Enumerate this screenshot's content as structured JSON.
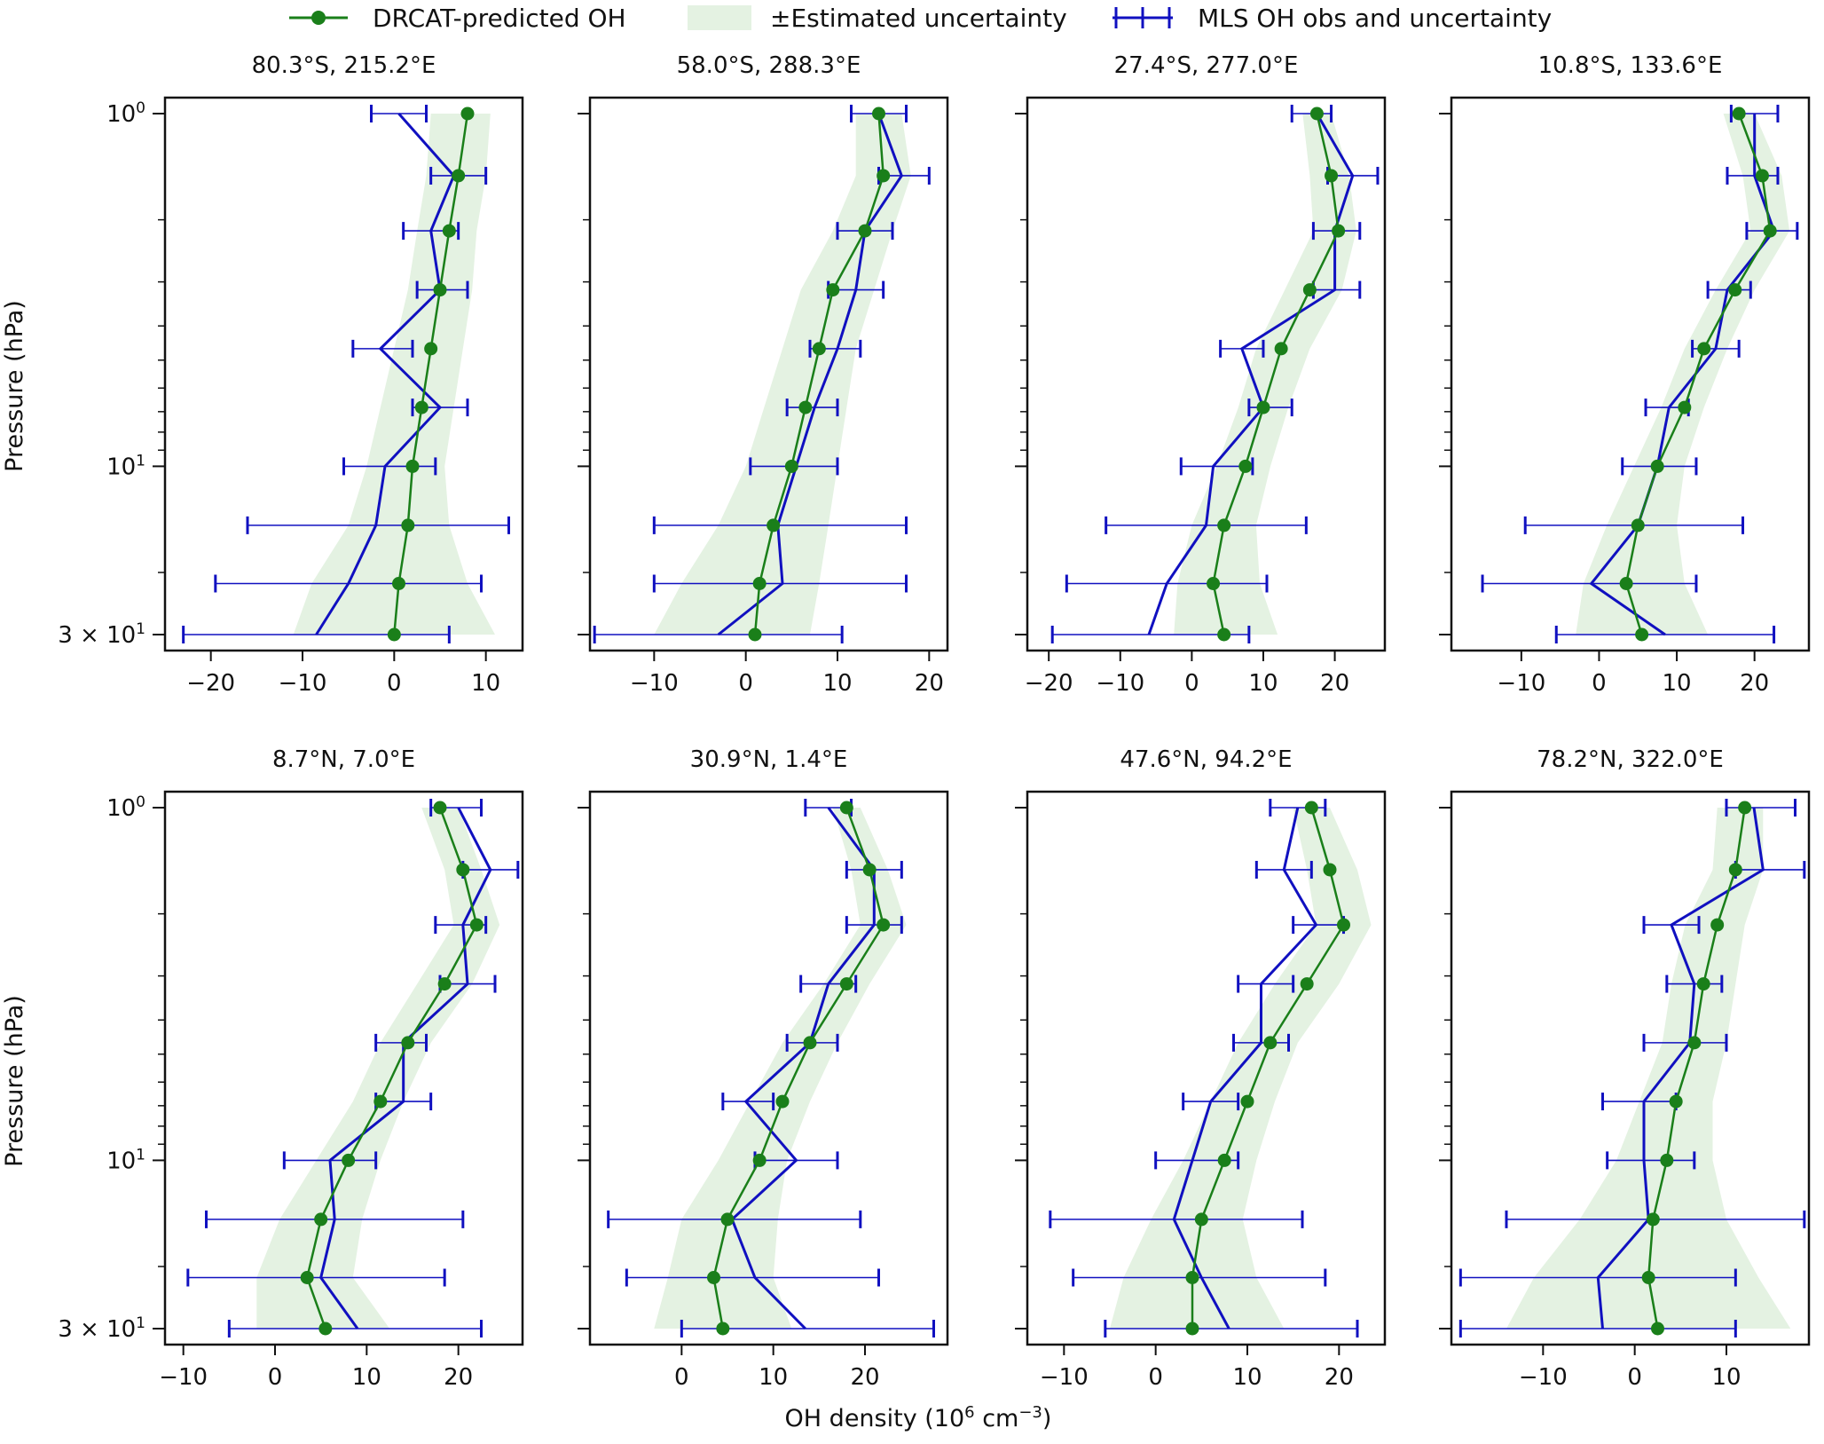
{
  "legend": {
    "model_label": "DRCAT-predicted OH",
    "band_label": "±Estimated uncertainty",
    "obs_label": "MLS OH obs and uncertainty"
  },
  "colors": {
    "model": "#1a7f1a",
    "band": "#e4f2e2",
    "obs": "#1010c0",
    "axes": "#111111"
  },
  "axis_labels": {
    "ylabel": "Pressure (hPa)",
    "xlabel_main": "OH density (10",
    "xlabel_exp": "6",
    "xlabel_tail": " cm",
    "xlabel_exp2": "−3",
    "xlabel_close": ")"
  },
  "chart_data": [
    {
      "type": "line",
      "title": "80.3°S, 215.2°E",
      "xlim": [
        -25,
        14
      ],
      "xticks": [
        -20,
        -10,
        0,
        10
      ],
      "ylim": [
        1,
        30
      ],
      "yscale": "log",
      "pressure": [
        1.0,
        1.5,
        2.15,
        3.16,
        4.64,
        6.81,
        10.0,
        14.7,
        21.5,
        30.0
      ],
      "model": [
        8,
        7,
        6,
        5,
        4,
        3,
        2,
        1.5,
        0.5,
        0
      ],
      "band_low": [
        4,
        3.5,
        2.5,
        1.5,
        0,
        -1.5,
        -3,
        -5,
        -9,
        -11
      ],
      "band_high": [
        10.5,
        10,
        9,
        8.5,
        7.5,
        6.5,
        5.5,
        6,
        8,
        11
      ],
      "obs": [
        0.5,
        6.5,
        4,
        5,
        -1.5,
        5,
        -1,
        -2,
        -5,
        -8.5
      ],
      "obs_err_low": [
        -2.5,
        4,
        1,
        2.5,
        -4.5,
        2,
        -5.5,
        -16,
        -19.5,
        -23
      ],
      "obs_err_high": [
        3.5,
        10,
        7,
        8,
        2,
        8,
        4.5,
        12.5,
        9.5,
        6
      ]
    },
    {
      "type": "line",
      "title": "58.0°S, 288.3°E",
      "xlim": [
        -17,
        22
      ],
      "xticks": [
        -10,
        0,
        10,
        20
      ],
      "ylim": [
        1,
        30
      ],
      "yscale": "log",
      "pressure": [
        1.0,
        1.5,
        2.15,
        3.16,
        4.64,
        6.81,
        10.0,
        14.7,
        21.5,
        30.0
      ],
      "model": [
        14.5,
        15,
        13,
        9.5,
        8,
        6.5,
        5,
        3,
        1.5,
        1
      ],
      "band_low": [
        12,
        12,
        9.5,
        6,
        4,
        2,
        0,
        -3,
        -7,
        -10
      ],
      "band_high": [
        17,
        18,
        16,
        14,
        12,
        11,
        10,
        9,
        8,
        7
      ],
      "obs": [
        14.5,
        17,
        13,
        12,
        10,
        7.5,
        5.5,
        3.5,
        4,
        -3
      ],
      "obs_err_low": [
        11.5,
        14.5,
        10,
        9,
        7,
        4.5,
        0.5,
        -10,
        -10,
        -16.5
      ],
      "obs_err_high": [
        17.5,
        20,
        16,
        15,
        12.5,
        10,
        10,
        17.5,
        17.5,
        10.5
      ]
    },
    {
      "type": "line",
      "title": "27.4°S, 277.0°E",
      "xlim": [
        -23,
        27
      ],
      "xticks": [
        -20,
        -10,
        0,
        10,
        20
      ],
      "ylim": [
        1,
        30
      ],
      "yscale": "log",
      "pressure": [
        1.0,
        1.5,
        2.15,
        3.16,
        4.64,
        6.81,
        10.0,
        14.7,
        21.5,
        30.0
      ],
      "model": [
        17.5,
        19.5,
        20.5,
        16.5,
        12.5,
        10,
        7.5,
        4.5,
        3,
        4.5
      ],
      "band_low": [
        15.5,
        16.5,
        17,
        13,
        9,
        6.5,
        3.5,
        0,
        -2,
        -2.5
      ],
      "band_high": [
        19.5,
        22,
        23,
        21,
        16.5,
        13.5,
        11,
        9,
        9.5,
        12
      ],
      "obs": [
        17.5,
        22.5,
        20,
        20,
        7,
        10,
        3,
        2,
        -3.5,
        -6
      ],
      "obs_err_low": [
        14,
        19,
        17,
        17,
        4,
        8,
        -1.5,
        -12,
        -17.5,
        -19.5
      ],
      "obs_err_high": [
        19.5,
        26,
        23.5,
        23.5,
        10,
        14,
        8.5,
        16,
        10.5,
        8
      ]
    },
    {
      "type": "line",
      "title": "10.8°S, 133.6°E",
      "xlim": [
        -19,
        27
      ],
      "xticks": [
        -10,
        0,
        10,
        20
      ],
      "ylim": [
        1,
        30
      ],
      "yscale": "log",
      "pressure": [
        1.0,
        1.5,
        2.15,
        3.16,
        4.64,
        6.81,
        10.0,
        14.7,
        21.5,
        30.0
      ],
      "model": [
        18,
        21,
        22,
        17.5,
        13.5,
        11,
        7.5,
        5,
        3.5,
        5.5
      ],
      "band_low": [
        16,
        18.5,
        19.5,
        15,
        11,
        8,
        4.5,
        1,
        -2,
        -3
      ],
      "band_high": [
        20,
        23.5,
        24.5,
        20,
        16.5,
        13.5,
        11,
        10,
        11,
        14
      ],
      "obs": [
        20,
        20,
        22.5,
        16.5,
        15,
        9,
        7.5,
        5,
        -1,
        8.5
      ],
      "obs_err_low": [
        17,
        16.5,
        19,
        14,
        12,
        6,
        3,
        -9.5,
        -15,
        -5.5
      ],
      "obs_err_high": [
        23,
        23,
        25.5,
        19.5,
        18,
        11.5,
        12.5,
        18.5,
        12.5,
        22.5
      ]
    },
    {
      "type": "line",
      "title": "8.7°N, 7.0°E",
      "xlim": [
        -12,
        27
      ],
      "xticks": [
        -10,
        0,
        10,
        20
      ],
      "ylim": [
        1,
        30
      ],
      "yscale": "log",
      "pressure": [
        1.0,
        1.5,
        2.15,
        3.16,
        4.64,
        6.81,
        10.0,
        14.7,
        21.5,
        30.0
      ],
      "model": [
        18,
        20.5,
        22,
        18.5,
        14.5,
        11.5,
        8,
        5,
        3.5,
        5.5
      ],
      "band_low": [
        16,
        18.5,
        19.5,
        15.5,
        11.5,
        8.5,
        4.5,
        0.5,
        -2,
        -2
      ],
      "band_high": [
        20,
        22.5,
        24.5,
        21.5,
        17,
        14,
        11.5,
        9.5,
        8.5,
        12.5
      ],
      "obs": [
        20,
        23.5,
        20.5,
        21,
        14,
        14,
        6,
        6.5,
        5,
        9
      ],
      "obs_err_low": [
        17,
        20.5,
        17.5,
        18,
        11,
        11,
        1,
        -7.5,
        -9.5,
        -5
      ],
      "obs_err_high": [
        22.5,
        26.5,
        23,
        24,
        16.5,
        17,
        11,
        20.5,
        18.5,
        22.5
      ]
    },
    {
      "type": "line",
      "title": "30.9°N, 1.4°E",
      "xlim": [
        -10,
        29
      ],
      "xticks": [
        0,
        10,
        20
      ],
      "ylim": [
        1,
        30
      ],
      "yscale": "log",
      "pressure": [
        1.0,
        1.5,
        2.15,
        3.16,
        4.64,
        6.81,
        10.0,
        14.7,
        21.5,
        30.0
      ],
      "model": [
        18,
        20.5,
        22,
        18,
        14,
        11,
        8.5,
        5,
        3.5,
        4.5
      ],
      "band_low": [
        16.5,
        18.5,
        19.5,
        15.5,
        11,
        7.5,
        4,
        0,
        -1.5,
        -3
      ],
      "band_high": [
        19.5,
        22.5,
        24.5,
        20.5,
        17,
        14,
        11.5,
        10.5,
        10,
        12
      ],
      "obs": [
        16,
        21,
        21,
        16,
        14,
        7,
        12.5,
        5.5,
        8,
        13.5
      ],
      "obs_err_low": [
        13.5,
        18,
        18,
        13,
        11.5,
        4.5,
        8,
        -8,
        -6,
        0
      ],
      "obs_err_high": [
        18.5,
        24,
        24,
        19,
        17,
        10,
        17,
        19.5,
        21.5,
        27.5
      ]
    },
    {
      "type": "line",
      "title": "47.6°N, 94.2°E",
      "xlim": [
        -14,
        25
      ],
      "xticks": [
        -10,
        0,
        10,
        20
      ],
      "ylim": [
        1,
        30
      ],
      "yscale": "log",
      "pressure": [
        1.0,
        1.5,
        2.15,
        3.16,
        4.64,
        6.81,
        10.0,
        14.7,
        21.5,
        30.0
      ],
      "model": [
        17,
        19,
        20.5,
        16.5,
        12.5,
        10,
        7.5,
        5,
        4,
        4
      ],
      "band_low": [
        15,
        16.5,
        17.5,
        13,
        9,
        6,
        3,
        -0.5,
        -3.5,
        -5
      ],
      "band_high": [
        19,
        22,
        23.5,
        20,
        15.5,
        13,
        11,
        9.5,
        11,
        14
      ],
      "obs": [
        15.5,
        14,
        17.5,
        11.5,
        11.5,
        6,
        4,
        2,
        5,
        8
      ],
      "obs_err_low": [
        12.5,
        11,
        15,
        9,
        8.5,
        3,
        0,
        -11.5,
        -9,
        -5.5
      ],
      "obs_err_high": [
        18.5,
        17,
        20.5,
        15,
        14.5,
        9,
        9,
        16,
        18.5,
        22
      ],
      "band_tail": true
    },
    {
      "type": "line",
      "title": "78.2°N, 322.0°E",
      "xlim": [
        -20,
        19
      ],
      "xticks": [
        -10,
        0,
        10
      ],
      "ylim": [
        1,
        30
      ],
      "yscale": "log",
      "pressure": [
        1.0,
        1.5,
        2.15,
        3.16,
        4.64,
        6.81,
        10.0,
        14.7,
        21.5,
        30.0
      ],
      "model": [
        12,
        11,
        9,
        7.5,
        6.5,
        4.5,
        3.5,
        2,
        1.5,
        2.5
      ],
      "band_low": [
        9,
        8.5,
        5.5,
        4,
        3,
        0.5,
        -2,
        -6,
        -11,
        -14
      ],
      "band_high": [
        14,
        14,
        12,
        11,
        10,
        8.5,
        8.5,
        10,
        13.5,
        17
      ],
      "obs": [
        13,
        14,
        4,
        6.5,
        6,
        1,
        1,
        1.5,
        -4,
        -3.5
      ],
      "obs_err_low": [
        10,
        11,
        1,
        3.5,
        1,
        -3.5,
        -3,
        -14,
        -19,
        -19
      ],
      "obs_err_high": [
        17.5,
        18.5,
        7,
        9.5,
        10,
        4.5,
        6.5,
        18.5,
        11,
        11
      ]
    }
  ]
}
